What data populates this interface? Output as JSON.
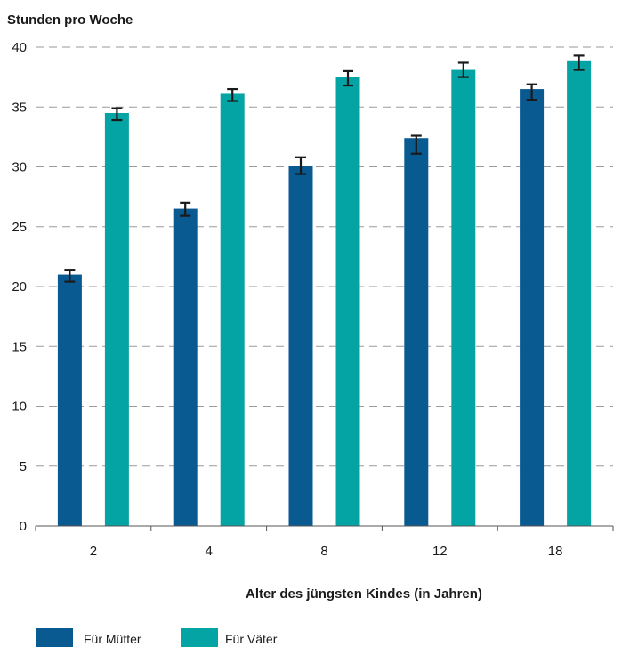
{
  "chart_data": {
    "type": "bar",
    "ylabel": "Stunden pro Woche",
    "xlabel": "Alter des jüngsten Kindes (in Jahren)",
    "categories": [
      "2",
      "4",
      "8",
      "12",
      "18"
    ],
    "ylim": [
      0,
      40
    ],
    "yticks": [
      0,
      5,
      10,
      15,
      20,
      25,
      30,
      35,
      40
    ],
    "grid": "horizontal dashed",
    "legend_position": "bottom-left",
    "series": [
      {
        "name": "Für Mütter",
        "color": "#0a5a92",
        "values": [
          21.0,
          26.5,
          30.1,
          32.4,
          36.5
        ],
        "error_low": [
          20.4,
          25.9,
          29.4,
          31.1,
          35.6
        ],
        "error_high": [
          21.4,
          27.0,
          30.8,
          32.6,
          36.9
        ]
      },
      {
        "name": "Für Väter",
        "color": "#05a4a4",
        "values": [
          34.5,
          36.1,
          37.5,
          38.1,
          38.9
        ],
        "error_low": [
          33.9,
          35.5,
          36.8,
          37.5,
          38.1
        ],
        "error_high": [
          34.9,
          36.5,
          38.0,
          38.7,
          39.3
        ]
      }
    ]
  }
}
